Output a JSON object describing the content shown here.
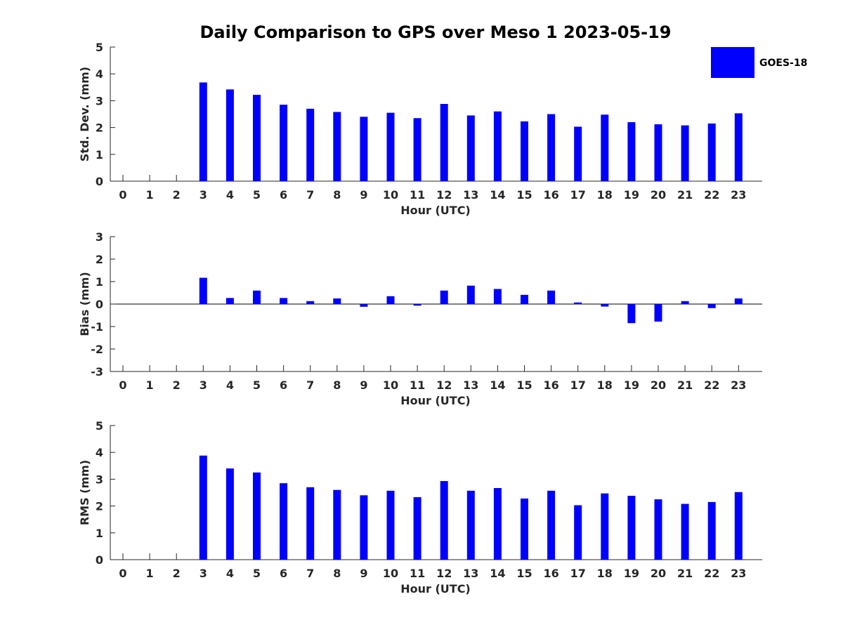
{
  "title": "Daily Comparison to GPS over Meso 1 2023-05-19",
  "legend": {
    "label": "GOES-18",
    "color": "#0000ff",
    "placement": "top-right"
  },
  "chart_data": [
    {
      "type": "bar",
      "xlabel": "Hour (UTC)",
      "ylabel": "Std. Dev. (mm)",
      "categories": [
        "0",
        "1",
        "2",
        "3",
        "4",
        "5",
        "6",
        "7",
        "8",
        "9",
        "10",
        "11",
        "12",
        "13",
        "14",
        "15",
        "16",
        "17",
        "18",
        "19",
        "20",
        "21",
        "22",
        "23"
      ],
      "series": [
        {
          "name": "GOES-18",
          "values": [
            null,
            null,
            null,
            3.68,
            3.42,
            3.22,
            2.85,
            2.7,
            2.58,
            2.4,
            2.55,
            2.35,
            2.88,
            2.45,
            2.6,
            2.23,
            2.5,
            2.03,
            2.48,
            2.2,
            2.12,
            2.08,
            2.15,
            2.53
          ]
        }
      ],
      "ylim": [
        0,
        5
      ],
      "yticks": [
        0,
        1,
        2,
        3,
        4,
        5
      ]
    },
    {
      "type": "bar",
      "xlabel": "Hour (UTC)",
      "ylabel": "Bias (mm)",
      "categories": [
        "0",
        "1",
        "2",
        "3",
        "4",
        "5",
        "6",
        "7",
        "8",
        "9",
        "10",
        "11",
        "12",
        "13",
        "14",
        "15",
        "16",
        "17",
        "18",
        "19",
        "20",
        "21",
        "22",
        "23"
      ],
      "series": [
        {
          "name": "GOES-18",
          "values": [
            null,
            null,
            null,
            1.17,
            0.27,
            0.6,
            0.27,
            0.13,
            0.25,
            -0.12,
            0.35,
            -0.07,
            0.6,
            0.82,
            0.67,
            0.41,
            0.6,
            0.07,
            -0.11,
            -0.85,
            -0.78,
            0.13,
            -0.18,
            0.25
          ]
        }
      ],
      "ylim": [
        -3,
        3
      ],
      "yticks": [
        -3,
        -2,
        -1,
        0,
        1,
        2,
        3
      ]
    },
    {
      "type": "bar",
      "xlabel": "Hour (UTC)",
      "ylabel": "RMS (mm)",
      "categories": [
        "0",
        "1",
        "2",
        "3",
        "4",
        "5",
        "6",
        "7",
        "8",
        "9",
        "10",
        "11",
        "12",
        "13",
        "14",
        "15",
        "16",
        "17",
        "18",
        "19",
        "20",
        "21",
        "22",
        "23"
      ],
      "series": [
        {
          "name": "GOES-18",
          "values": [
            null,
            null,
            null,
            3.88,
            3.4,
            3.25,
            2.85,
            2.7,
            2.6,
            2.4,
            2.57,
            2.33,
            2.93,
            2.57,
            2.67,
            2.28,
            2.57,
            2.03,
            2.47,
            2.38,
            2.25,
            2.08,
            2.15,
            2.52
          ]
        }
      ],
      "ylim": [
        0,
        5
      ],
      "yticks": [
        0,
        1,
        2,
        3,
        4,
        5
      ]
    }
  ]
}
